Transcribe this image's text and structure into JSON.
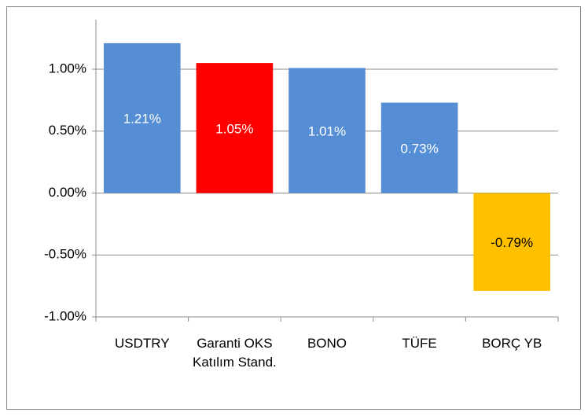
{
  "chart_data": {
    "type": "bar",
    "categories": [
      "USDTRY",
      "Garanti OKS Katılım Stand.",
      "BONO",
      "TÜFE",
      "BORÇ YB"
    ],
    "values": [
      1.21,
      1.05,
      1.01,
      0.73,
      -0.79
    ],
    "value_labels": [
      "1.21%",
      "1.05%",
      "1.01%",
      "0.73%",
      "-0.79%"
    ],
    "colors": [
      "#558ed5",
      "#ff0000",
      "#558ed5",
      "#558ed5",
      "#ffc000"
    ],
    "ylim": [
      -1,
      1.4
    ],
    "yticks": [
      {
        "value": -1,
        "label": "-1.00%"
      },
      {
        "value": -0.5,
        "label": "-0.50%"
      },
      {
        "value": 0,
        "label": "0.00%"
      },
      {
        "value": 0.5,
        "label": "0.50%"
      },
      {
        "value": 1,
        "label": "1.00%"
      }
    ],
    "grid": true
  }
}
